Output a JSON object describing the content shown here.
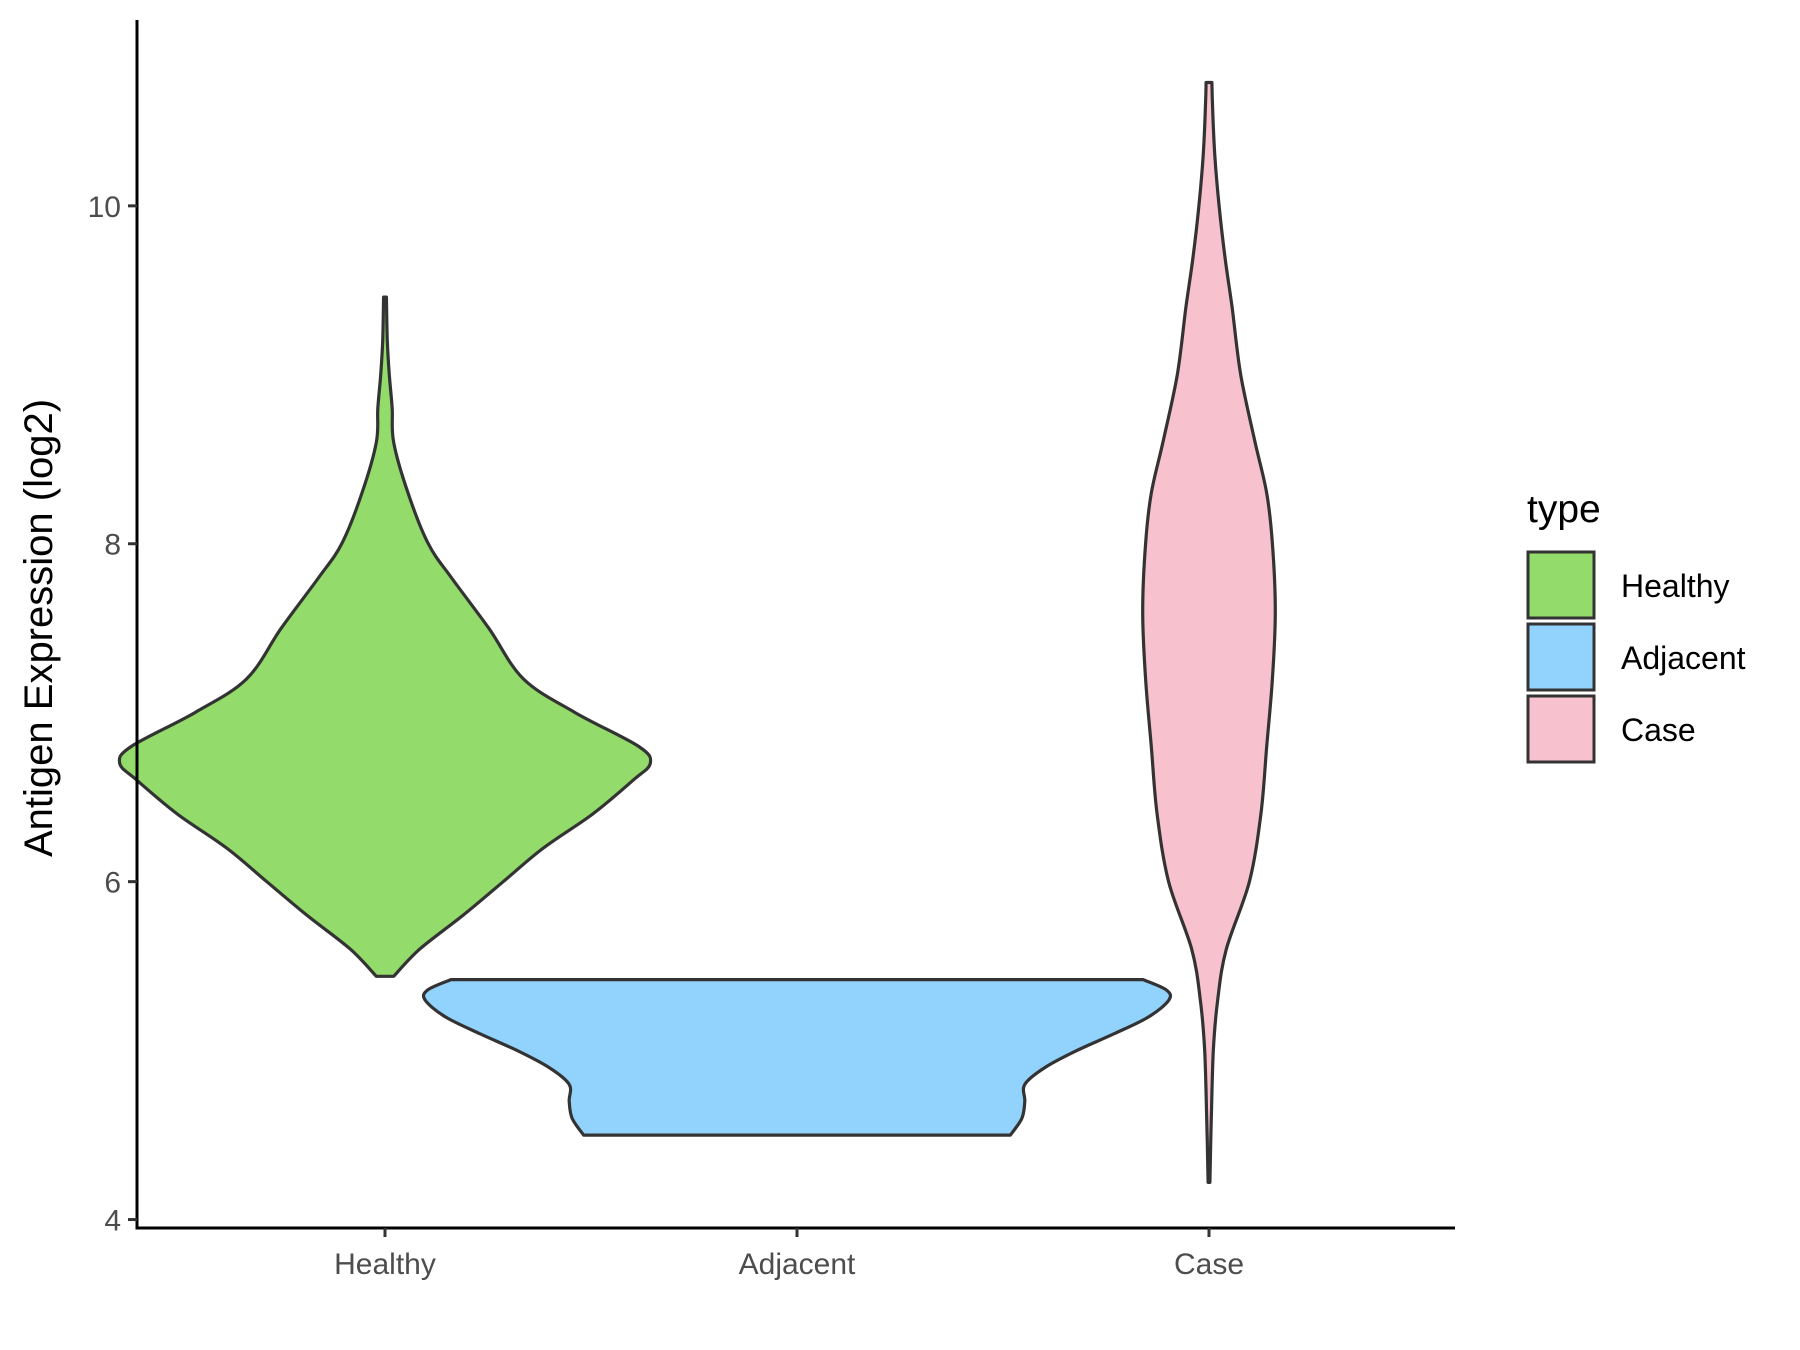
{
  "chart_data": {
    "type": "violin",
    "title": "",
    "xlabel": "",
    "ylabel": "Antigen Expression (log2)",
    "ylim": [
      3.95,
      11.1
    ],
    "yticks": [
      4,
      6,
      8,
      10
    ],
    "ytick_labels": [
      "4",
      "6",
      "8",
      "10"
    ],
    "categories": [
      "Healthy",
      "Adjacent",
      "Case"
    ],
    "grid": false,
    "legend": {
      "title": "type",
      "position": "right",
      "entries": [
        "Healthy",
        "Adjacent",
        "Case"
      ]
    },
    "series": [
      {
        "name": "Healthy",
        "color": "#93DB6A",
        "min": 5.44,
        "max": 9.46,
        "density_profile": [
          [
            5.44,
            0.03
          ],
          [
            5.6,
            0.12
          ],
          [
            5.8,
            0.27
          ],
          [
            6.0,
            0.41
          ],
          [
            6.2,
            0.55
          ],
          [
            6.4,
            0.72
          ],
          [
            6.6,
            0.86
          ],
          [
            6.7,
            0.92
          ],
          [
            6.8,
            0.88
          ],
          [
            7.0,
            0.66
          ],
          [
            7.2,
            0.48
          ],
          [
            7.5,
            0.36
          ],
          [
            7.8,
            0.23
          ],
          [
            8.0,
            0.15
          ],
          [
            8.3,
            0.08
          ],
          [
            8.6,
            0.03
          ],
          [
            8.8,
            0.025
          ],
          [
            9.0,
            0.015
          ],
          [
            9.2,
            0.008
          ],
          [
            9.46,
            0.005
          ]
        ]
      },
      {
        "name": "Adjacent",
        "color": "#92D3FE",
        "min": 4.5,
        "max": 5.42,
        "density_profile": [
          [
            4.5,
            0.74
          ],
          [
            4.6,
            0.78
          ],
          [
            4.7,
            0.79
          ],
          [
            4.8,
            0.79
          ],
          [
            4.9,
            0.86
          ],
          [
            5.0,
            0.97
          ],
          [
            5.1,
            1.1
          ],
          [
            5.2,
            1.22
          ],
          [
            5.3,
            1.29
          ],
          [
            5.36,
            1.28
          ],
          [
            5.42,
            1.2
          ]
        ]
      },
      {
        "name": "Case",
        "color": "#F7C2CD",
        "min": 4.22,
        "max": 10.73,
        "density_profile": [
          [
            4.22,
            0.003
          ],
          [
            4.6,
            0.008
          ],
          [
            5.0,
            0.015
          ],
          [
            5.3,
            0.03
          ],
          [
            5.6,
            0.06
          ],
          [
            6.0,
            0.14
          ],
          [
            6.4,
            0.18
          ],
          [
            6.8,
            0.2
          ],
          [
            7.2,
            0.22
          ],
          [
            7.6,
            0.23
          ],
          [
            8.0,
            0.22
          ],
          [
            8.3,
            0.2
          ],
          [
            8.6,
            0.16
          ],
          [
            9.0,
            0.11
          ],
          [
            9.4,
            0.08
          ],
          [
            9.7,
            0.055
          ],
          [
            10.0,
            0.035
          ],
          [
            10.3,
            0.02
          ],
          [
            10.6,
            0.012
          ],
          [
            10.73,
            0.01
          ]
        ]
      }
    ]
  }
}
